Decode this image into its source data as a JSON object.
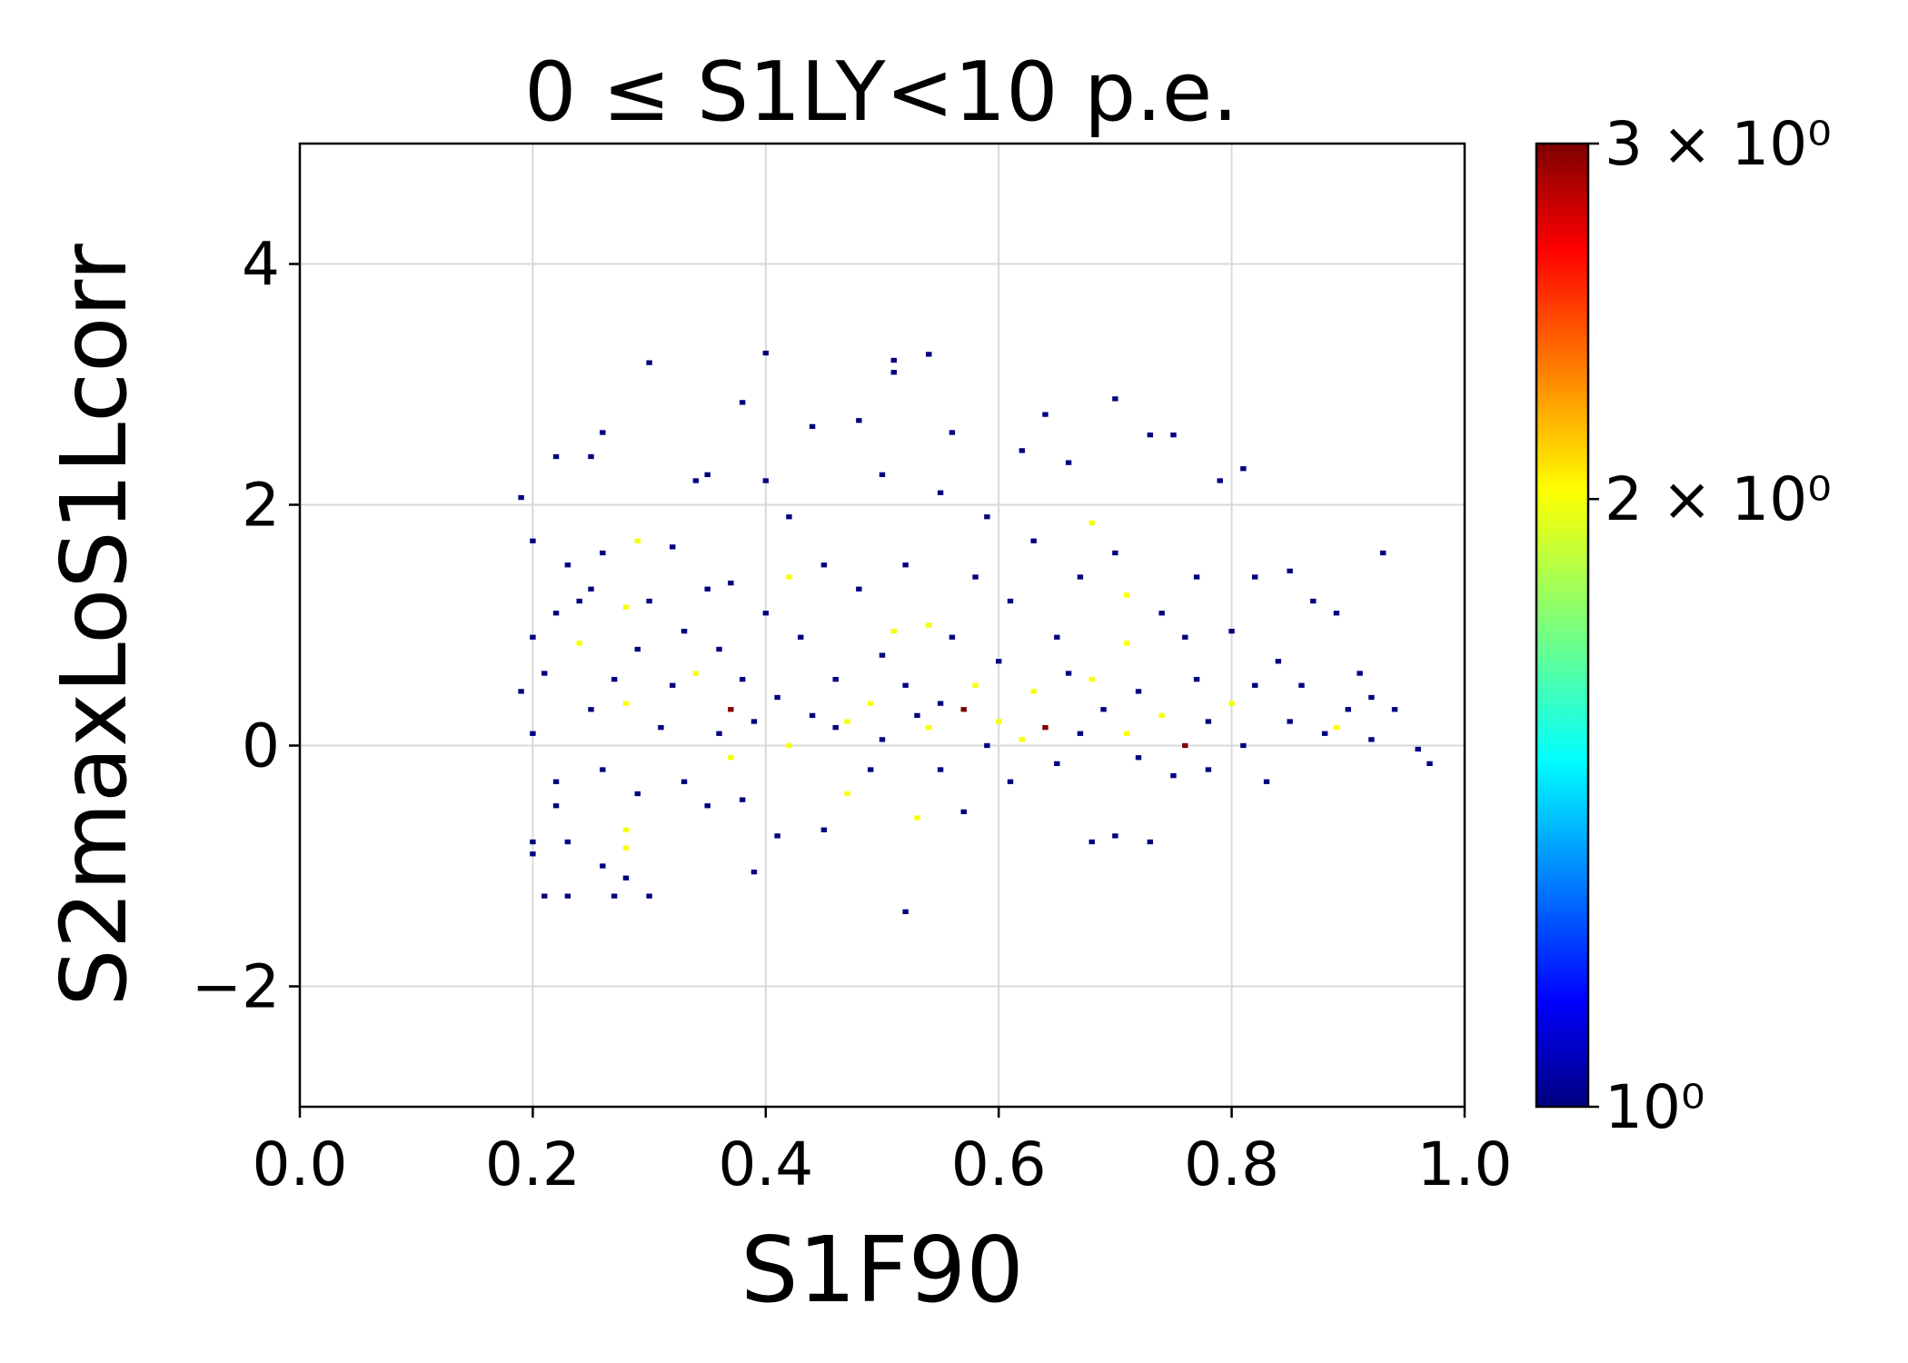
{
  "chart_data": {
    "type": "heatmap",
    "title": "0 ≤ S1LY<10 p.e.",
    "xlabel": "S1F90",
    "ylabel": "S2maxLoS1Lcorr",
    "xlim": [
      0.0,
      1.0
    ],
    "ylim": [
      -3.0,
      5.0
    ],
    "x_ticks": [
      0.0,
      0.2,
      0.4,
      0.6,
      0.8,
      1.0
    ],
    "x_tick_labels": [
      "0.0",
      "0.2",
      "0.4",
      "0.6",
      "0.8",
      "1.0"
    ],
    "y_ticks": [
      -2,
      0,
      2,
      4
    ],
    "y_tick_labels": [
      "−2",
      "0",
      "2",
      "4"
    ],
    "grid": true,
    "colormap": "jet",
    "colorbar": {
      "scale": "log",
      "range": [
        1,
        3
      ],
      "ticks": [
        1,
        2,
        3
      ],
      "tick_labels": [
        "10⁰",
        "2 × 10⁰",
        "3 × 10⁰"
      ]
    },
    "bin_size": {
      "x": 0.005,
      "y": 0.04
    },
    "points": [
      [
        0.19,
        2.06,
        1
      ],
      [
        0.2,
        1.7,
        1
      ],
      [
        0.21,
        0.6,
        1
      ],
      [
        0.2,
        0.9,
        1
      ],
      [
        0.19,
        0.45,
        1
      ],
      [
        0.2,
        0.1,
        1
      ],
      [
        0.2,
        -0.8,
        1
      ],
      [
        0.2,
        -0.9,
        1
      ],
      [
        0.21,
        -1.25,
        1
      ],
      [
        0.22,
        -0.3,
        1
      ],
      [
        0.22,
        -0.5,
        1
      ],
      [
        0.23,
        -1.25,
        1
      ],
      [
        0.23,
        -0.8,
        1
      ],
      [
        0.22,
        2.4,
        1
      ],
      [
        0.22,
        1.1,
        1
      ],
      [
        0.23,
        1.5,
        1
      ],
      [
        0.24,
        1.2,
        1
      ],
      [
        0.24,
        0.85,
        2
      ],
      [
        0.25,
        1.3,
        1
      ],
      [
        0.25,
        0.3,
        1
      ],
      [
        0.26,
        2.6,
        1
      ],
      [
        0.25,
        2.4,
        1
      ],
      [
        0.26,
        1.6,
        1
      ],
      [
        0.26,
        -0.2,
        1
      ],
      [
        0.26,
        -1.0,
        1
      ],
      [
        0.27,
        -1.25,
        1
      ],
      [
        0.27,
        0.55,
        1
      ],
      [
        0.28,
        -0.7,
        2
      ],
      [
        0.28,
        -0.85,
        2
      ],
      [
        0.28,
        1.15,
        2
      ],
      [
        0.28,
        0.35,
        2
      ],
      [
        0.29,
        1.7,
        2
      ],
      [
        0.28,
        -1.1,
        1
      ],
      [
        0.29,
        -0.4,
        1
      ],
      [
        0.3,
        3.18,
        1
      ],
      [
        0.3,
        -1.25,
        1
      ],
      [
        0.29,
        0.8,
        1
      ],
      [
        0.3,
        1.2,
        1
      ],
      [
        0.31,
        0.15,
        1
      ],
      [
        0.32,
        1.65,
        1
      ],
      [
        0.32,
        0.5,
        1
      ],
      [
        0.33,
        -0.3,
        1
      ],
      [
        0.33,
        0.95,
        1
      ],
      [
        0.34,
        2.2,
        1
      ],
      [
        0.34,
        0.6,
        2
      ],
      [
        0.35,
        2.25,
        1
      ],
      [
        0.35,
        1.3,
        1
      ],
      [
        0.35,
        -0.5,
        1
      ],
      [
        0.36,
        0.8,
        1
      ],
      [
        0.36,
        0.1,
        1
      ],
      [
        0.37,
        0.3,
        3
      ],
      [
        0.37,
        -0.1,
        2
      ],
      [
        0.37,
        1.35,
        1
      ],
      [
        0.38,
        2.85,
        1
      ],
      [
        0.38,
        0.55,
        1
      ],
      [
        0.38,
        -0.45,
        1
      ],
      [
        0.39,
        -1.05,
        1
      ],
      [
        0.39,
        0.2,
        1
      ],
      [
        0.4,
        2.2,
        1
      ],
      [
        0.4,
        1.1,
        1
      ],
      [
        0.4,
        3.26,
        1
      ],
      [
        0.41,
        -0.75,
        1
      ],
      [
        0.41,
        0.4,
        1
      ],
      [
        0.42,
        0.0,
        2
      ],
      [
        0.42,
        1.4,
        2
      ],
      [
        0.42,
        1.9,
        1
      ],
      [
        0.43,
        0.9,
        1
      ],
      [
        0.44,
        2.65,
        1
      ],
      [
        0.44,
        0.25,
        1
      ],
      [
        0.45,
        -0.7,
        1
      ],
      [
        0.45,
        1.5,
        1
      ],
      [
        0.46,
        0.55,
        1
      ],
      [
        0.46,
        0.15,
        1
      ],
      [
        0.47,
        -0.4,
        2
      ],
      [
        0.47,
        0.2,
        2
      ],
      [
        0.48,
        2.7,
        1
      ],
      [
        0.48,
        1.3,
        1
      ],
      [
        0.49,
        0.35,
        2
      ],
      [
        0.49,
        -0.2,
        1
      ],
      [
        0.5,
        2.25,
        1
      ],
      [
        0.5,
        0.75,
        1
      ],
      [
        0.5,
        0.05,
        1
      ],
      [
        0.51,
        3.1,
        1
      ],
      [
        0.51,
        3.2,
        1
      ],
      [
        0.51,
        0.95,
        2
      ],
      [
        0.52,
        1.5,
        1
      ],
      [
        0.52,
        0.5,
        1
      ],
      [
        0.52,
        -1.38,
        1
      ],
      [
        0.53,
        0.25,
        1
      ],
      [
        0.53,
        -0.6,
        2
      ],
      [
        0.54,
        3.25,
        1
      ],
      [
        0.54,
        1.0,
        2
      ],
      [
        0.54,
        0.15,
        2
      ],
      [
        0.55,
        2.1,
        1
      ],
      [
        0.55,
        0.35,
        1
      ],
      [
        0.55,
        -0.2,
        1
      ],
      [
        0.56,
        2.6,
        1
      ],
      [
        0.56,
        0.9,
        1
      ],
      [
        0.57,
        0.3,
        3
      ],
      [
        0.57,
        -0.55,
        1
      ],
      [
        0.58,
        1.4,
        1
      ],
      [
        0.58,
        0.5,
        2
      ],
      [
        0.59,
        1.9,
        1
      ],
      [
        0.59,
        0.0,
        1
      ],
      [
        0.6,
        0.7,
        1
      ],
      [
        0.6,
        0.2,
        2
      ],
      [
        0.61,
        1.2,
        1
      ],
      [
        0.61,
        -0.3,
        1
      ],
      [
        0.62,
        2.45,
        1
      ],
      [
        0.62,
        0.05,
        2
      ],
      [
        0.63,
        0.45,
        2
      ],
      [
        0.63,
        1.7,
        1
      ],
      [
        0.64,
        2.75,
        1
      ],
      [
        0.64,
        0.15,
        3
      ],
      [
        0.65,
        0.9,
        1
      ],
      [
        0.65,
        -0.15,
        1
      ],
      [
        0.66,
        2.35,
        1
      ],
      [
        0.66,
        0.6,
        1
      ],
      [
        0.67,
        1.4,
        1
      ],
      [
        0.67,
        0.1,
        1
      ],
      [
        0.68,
        1.85,
        2
      ],
      [
        0.68,
        -0.8,
        1
      ],
      [
        0.68,
        0.55,
        2
      ],
      [
        0.69,
        0.3,
        1
      ],
      [
        0.7,
        2.88,
        1
      ],
      [
        0.7,
        1.6,
        1
      ],
      [
        0.7,
        -0.75,
        1
      ],
      [
        0.71,
        0.85,
        2
      ],
      [
        0.71,
        1.25,
        2
      ],
      [
        0.71,
        0.1,
        2
      ],
      [
        0.72,
        0.45,
        1
      ],
      [
        0.72,
        -0.1,
        1
      ],
      [
        0.73,
        2.58,
        1
      ],
      [
        0.73,
        -0.8,
        1
      ],
      [
        0.74,
        1.1,
        1
      ],
      [
        0.74,
        0.25,
        2
      ],
      [
        0.75,
        2.58,
        1
      ],
      [
        0.75,
        -0.25,
        1
      ],
      [
        0.76,
        0.0,
        3
      ],
      [
        0.76,
        0.9,
        1
      ],
      [
        0.77,
        0.55,
        1
      ],
      [
        0.77,
        1.4,
        1
      ],
      [
        0.78,
        0.2,
        1
      ],
      [
        0.78,
        -0.2,
        1
      ],
      [
        0.79,
        2.2,
        1
      ],
      [
        0.8,
        0.35,
        2
      ],
      [
        0.8,
        0.95,
        1
      ],
      [
        0.81,
        2.3,
        1
      ],
      [
        0.81,
        0.0,
        1
      ],
      [
        0.82,
        0.5,
        1
      ],
      [
        0.82,
        1.4,
        1
      ],
      [
        0.83,
        -0.3,
        1
      ],
      [
        0.84,
        0.7,
        1
      ],
      [
        0.85,
        1.45,
        1
      ],
      [
        0.85,
        0.2,
        1
      ],
      [
        0.86,
        0.5,
        1
      ],
      [
        0.87,
        1.2,
        1
      ],
      [
        0.88,
        0.1,
        1
      ],
      [
        0.89,
        1.1,
        1
      ],
      [
        0.89,
        0.15,
        2
      ],
      [
        0.9,
        0.3,
        1
      ],
      [
        0.91,
        0.6,
        1
      ],
      [
        0.92,
        0.05,
        1
      ],
      [
        0.92,
        0.4,
        1
      ],
      [
        0.93,
        1.6,
        1
      ],
      [
        0.94,
        0.3,
        1
      ],
      [
        0.96,
        -0.03,
        1
      ],
      [
        0.97,
        -0.15,
        1
      ]
    ]
  }
}
